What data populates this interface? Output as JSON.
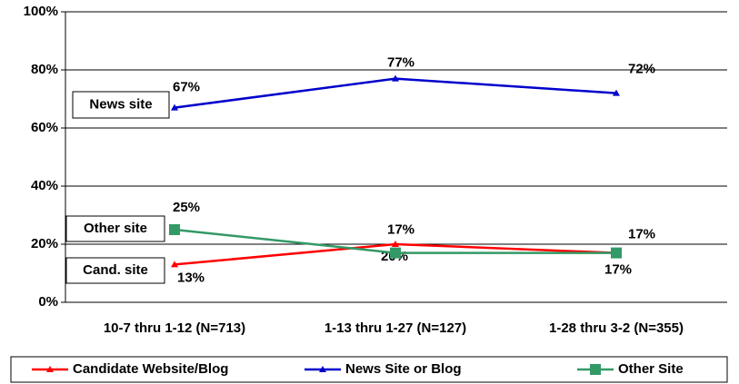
{
  "chart_data": {
    "type": "line",
    "categories": [
      "10-7 thru 1-12 (N=713)",
      "1-13 thru 1-27 (N=127)",
      "1-28 thru 3-2 (N=355)"
    ],
    "series": [
      {
        "name": "Candidate Website/Blog",
        "color": "#ff0000",
        "marker": "triangle",
        "values": [
          13,
          20,
          17
        ],
        "value_labels": [
          "13%",
          "20%",
          "17%"
        ]
      },
      {
        "name": "News Site or Blog",
        "color": "#0000cc",
        "marker": "triangle",
        "values": [
          67,
          77,
          72
        ],
        "value_labels": [
          "67%",
          "77%",
          "72%"
        ]
      },
      {
        "name": "Other Site",
        "color": "#339966",
        "marker": "square",
        "values": [
          25,
          17,
          17
        ],
        "value_labels": [
          "25%",
          "17%",
          "17%"
        ]
      }
    ],
    "ylim": [
      0,
      100
    ],
    "yticks": [
      {
        "value": 0,
        "label": "0%"
      },
      {
        "value": 20,
        "label": "20%"
      },
      {
        "value": 40,
        "label": "40%"
      },
      {
        "value": 60,
        "label": "60%"
      },
      {
        "value": 80,
        "label": "80%"
      },
      {
        "value": 100,
        "label": "100%"
      }
    ],
    "grid": true,
    "legend": "bottom",
    "annotations": [
      "News site",
      "Other site",
      "Cand. site"
    ]
  }
}
